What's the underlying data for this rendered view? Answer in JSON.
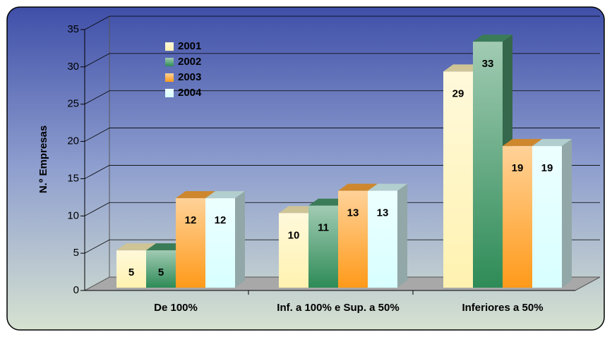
{
  "chart_data": {
    "type": "bar3d",
    "categories": [
      "De 100%",
      "Inf. a 100% e Sup. a 50%",
      "Inferiores a 50%"
    ],
    "series": [
      {
        "name": "2001",
        "color": "#fff2b0",
        "values": [
          5,
          10,
          29
        ]
      },
      {
        "name": "2002",
        "color": "#2e8b57",
        "values": [
          5,
          11,
          33
        ]
      },
      {
        "name": "2003",
        "color": "#ff9a1a",
        "values": [
          12,
          13,
          19
        ]
      },
      {
        "name": "2004",
        "color": "#d8ffff",
        "values": [
          12,
          13,
          19
        ]
      }
    ],
    "y_label": "N.º Empresas",
    "ylim": [
      0,
      35
    ],
    "yticks": [
      0,
      5,
      10,
      15,
      20,
      25,
      30,
      35
    ],
    "grid": true,
    "legend": "top-left"
  }
}
